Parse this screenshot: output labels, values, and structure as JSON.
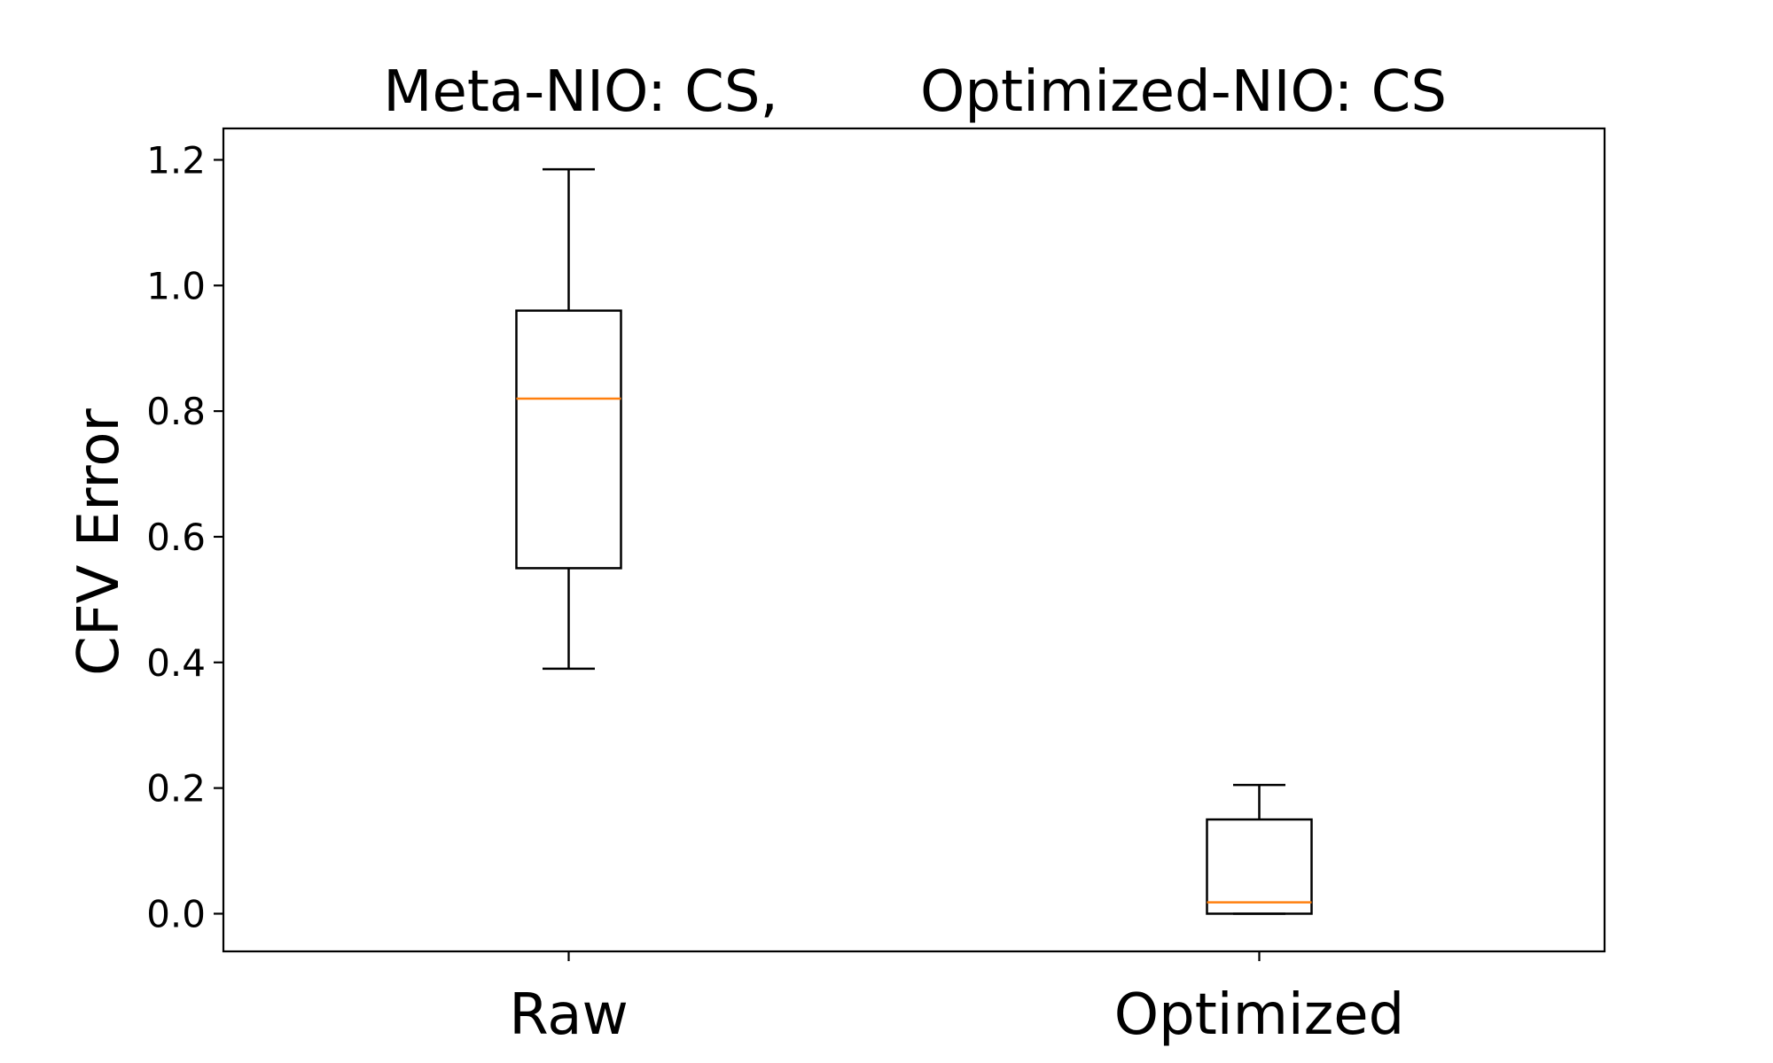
{
  "chart_data": {
    "type": "box",
    "title_left": "Meta-NIO: CS,",
    "title_right": "Optimized-NIO: CS",
    "xlabel": "",
    "ylabel": "CFV Error",
    "ylim": [
      -0.06,
      1.25
    ],
    "yticks": [
      0.0,
      0.2,
      0.4,
      0.6,
      0.8,
      1.0,
      1.2
    ],
    "ytick_labels": [
      "0.0",
      "0.2",
      "0.4",
      "0.6",
      "0.8",
      "1.0",
      "1.2"
    ],
    "categories": [
      "Raw",
      "Optimized"
    ],
    "boxes": [
      {
        "whisker_low": 0.39,
        "q1": 0.55,
        "median": 0.82,
        "q3": 0.96,
        "whisker_high": 1.185
      },
      {
        "whisker_low": 0.0,
        "q1": 0.0,
        "median": 0.018,
        "q3": 0.15,
        "whisker_high": 0.205
      }
    ],
    "grid": false,
    "colors": {
      "box_edge": "#000000",
      "median": "#ff7f0e"
    }
  }
}
